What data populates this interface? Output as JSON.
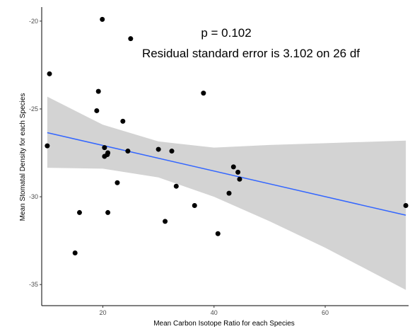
{
  "chart_data": {
    "type": "scatter",
    "title": "",
    "xlabel": "Mean Carbon Isotope Ratio for each Species",
    "ylabel": "Mean Stomatal Density for each Species",
    "xlim": [
      9,
      75
    ],
    "ylim": [
      -36.2,
      -19.2
    ],
    "x_ticks": [
      20,
      40,
      60
    ],
    "y_ticks": [
      -20,
      -25,
      -30,
      -35
    ],
    "grid": false,
    "legend": "none",
    "annotations": [
      "p = 0.102",
      "Residual standard error is 3.102 on 26 df"
    ],
    "points": [
      {
        "x": 10.0,
        "y": -27.1
      },
      {
        "x": 10.4,
        "y": -23.0
      },
      {
        "x": 15.0,
        "y": -33.2
      },
      {
        "x": 15.8,
        "y": -30.9
      },
      {
        "x": 18.9,
        "y": -25.1
      },
      {
        "x": 19.2,
        "y": -24.0
      },
      {
        "x": 19.9,
        "y": -19.9
      },
      {
        "x": 20.3,
        "y": -27.2
      },
      {
        "x": 20.3,
        "y": -27.7
      },
      {
        "x": 20.8,
        "y": -27.6
      },
      {
        "x": 20.9,
        "y": -27.5
      },
      {
        "x": 20.9,
        "y": -30.9
      },
      {
        "x": 22.6,
        "y": -29.2
      },
      {
        "x": 23.6,
        "y": -25.7
      },
      {
        "x": 24.5,
        "y": -27.4
      },
      {
        "x": 25.0,
        "y": -21.0
      },
      {
        "x": 30.0,
        "y": -27.3
      },
      {
        "x": 31.2,
        "y": -31.4
      },
      {
        "x": 32.4,
        "y": -27.4
      },
      {
        "x": 33.2,
        "y": -29.4
      },
      {
        "x": 36.5,
        "y": -30.5
      },
      {
        "x": 38.1,
        "y": -24.1
      },
      {
        "x": 40.7,
        "y": -32.1
      },
      {
        "x": 42.7,
        "y": -29.8
      },
      {
        "x": 43.5,
        "y": -28.3
      },
      {
        "x": 44.3,
        "y": -28.6
      },
      {
        "x": 44.6,
        "y": -29.0
      },
      {
        "x": 74.5,
        "y": -30.5
      }
    ],
    "fit_line": {
      "x": [
        10.0,
        74.5
      ],
      "y": [
        -26.35,
        -31.05
      ],
      "color": "#3366ff"
    },
    "confidence_band": {
      "x": [
        10.0,
        20.0,
        30.0,
        40.0,
        50.0,
        60.0,
        74.5
      ],
      "lower": [
        -28.35,
        -28.4,
        -28.9,
        -30.0,
        -31.4,
        -32.9,
        -35.3
      ],
      "upper": [
        -24.3,
        -25.9,
        -26.85,
        -27.2,
        -27.05,
        -26.95,
        -26.8
      ],
      "color": "#d3d3d3"
    },
    "point_color": "#000000"
  }
}
